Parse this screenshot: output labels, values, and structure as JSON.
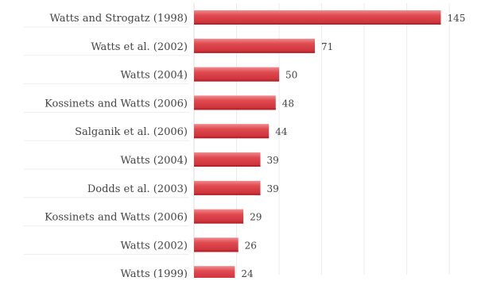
{
  "chart_data": {
    "type": "bar",
    "orientation": "horizontal",
    "title": "",
    "xlabel": "",
    "ylabel": "",
    "categories": [
      "Watts and Strogatz (1998)",
      "Watts et al. (2002)",
      "Watts (2004)",
      "Kossinets and Watts (2006)",
      "Salganik et al. (2006)",
      "Watts (2004)",
      "Dodds et al. (2003)",
      "Kossinets and Watts (2006)",
      "Watts (2002)",
      "Watts (1999)"
    ],
    "values": [
      145,
      71,
      50,
      48,
      44,
      39,
      39,
      29,
      26,
      24
    ],
    "value_labels": [
      "145",
      "71",
      "50",
      "48",
      "44",
      "39",
      "39",
      "29",
      "26",
      "24"
    ],
    "xlim": [
      0,
      170
    ],
    "grid": true,
    "bar_color": "#d8363d",
    "bar_highlight_color": "#f08a8d",
    "label_color": "#444444",
    "grid_color": "#ececec",
    "background_color": "#ffffff"
  }
}
